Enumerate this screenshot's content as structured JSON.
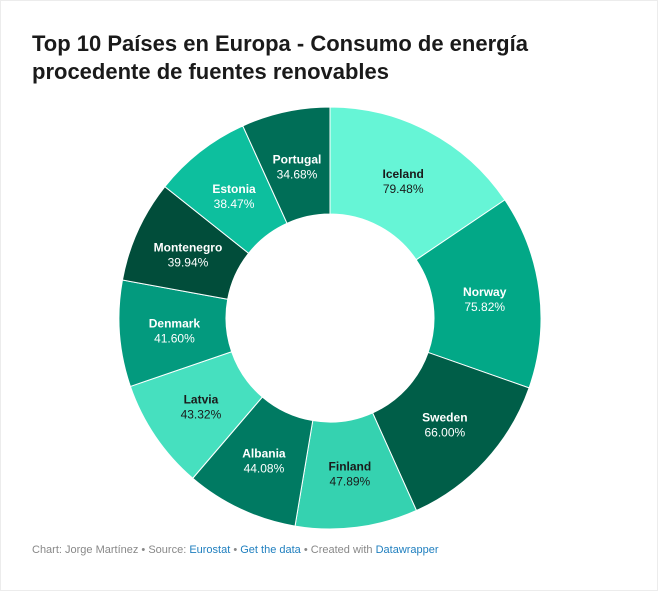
{
  "title": "Top 10 Países en Europa - Consumo de energía procedente de fuentes renovables",
  "footer": {
    "prefix": "Chart: Jorge Martínez • Source: ",
    "source": "Eurostat",
    "sep1": " • ",
    "get_data": "Get the data",
    "sep2": " • Created with ",
    "tool": "Datawrapper"
  },
  "chart_data": {
    "type": "pie",
    "variant": "donut",
    "categories": [
      "Iceland",
      "Norway",
      "Sweden",
      "Finland",
      "Albania",
      "Latvia",
      "Denmark",
      "Montenegro",
      "Estonia",
      "Portugal"
    ],
    "values": [
      79.48,
      75.82,
      66.0,
      47.89,
      44.08,
      43.32,
      41.6,
      39.94,
      38.47,
      34.68
    ],
    "value_labels": [
      "79.48%",
      "75.82%",
      "66.00%",
      "47.89%",
      "44.08%",
      "43.32%",
      "41.60%",
      "39.94%",
      "38.47%",
      "34.68%"
    ],
    "colors": [
      "#66f5d6",
      "#02a887",
      "#005e48",
      "#35d2b0",
      "#007a62",
      "#46e0bf",
      "#039a7e",
      "#014d3a",
      "#0dbf9e",
      "#006e57"
    ],
    "label_colors": [
      "#1a1a1a",
      "#ffffff",
      "#ffffff",
      "#1a1a1a",
      "#ffffff",
      "#1a1a1a",
      "#ffffff",
      "#ffffff",
      "#ffffff",
      "#ffffff"
    ],
    "legend": false
  }
}
